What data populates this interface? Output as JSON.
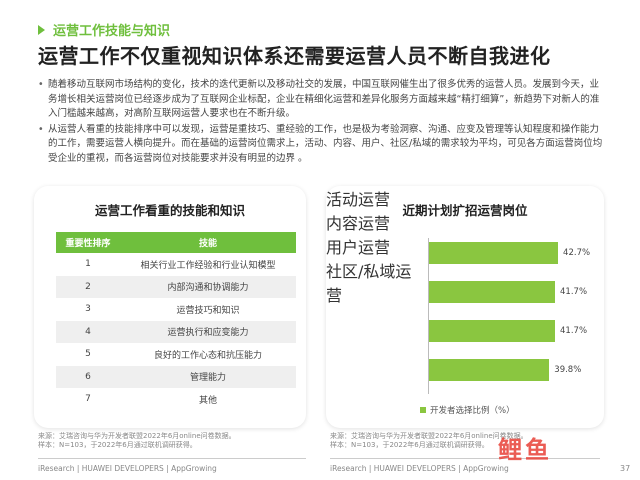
{
  "header": {
    "section": "运营工作技能与知识",
    "title": "运营工作不仅重视知识体系还需要运营人员不断自我进化"
  },
  "bullets": [
    "随着移动互联网市场结构的变化，技术的迭代更新以及移动社交的发展，中国互联网催生出了很多优秀的运营人员。发展到今天，业务增长相关运营岗位已经逐步成为了互联网企业标配，企业在精细化运营和差异化服务方面越来越“精打细算”，新趋势下对新人的准入门槛越来越高，对高阶互联网运营人要求也在不断升级。",
    "从运营人看重的技能排序中可以发现，运营是重技巧、重经验的工作，也是极为考验洞察、沟通、应变及管理等认知程度和操作能力的工作，需要运营人横向提升。而在基础的运营岗位需求上，活动、内容、用户、社区/私域的需求较为平均，可见各方面运营岗位均受企业的重视，而各运营岗位对技能要求并没有明显的边界 。"
  ],
  "left_card": {
    "title": "运营工作看重的技能和知识",
    "headers": [
      "重要性排序",
      "技能"
    ],
    "rows": [
      [
        "1",
        "相关行业工作经验和行业认知模型"
      ],
      [
        "2",
        "内部沟通和协调能力"
      ],
      [
        "3",
        "运营技巧和知识"
      ],
      [
        "4",
        "运营执行和应变能力"
      ],
      [
        "5",
        "良好的工作心态和抗压能力"
      ],
      [
        "6",
        "管理能力"
      ],
      [
        "7",
        "其他"
      ]
    ]
  },
  "right_card": {
    "title": "近期计划扩招运营岗位",
    "legend": "开发者选择比例（%）"
  },
  "chart_data": {
    "type": "bar",
    "orientation": "horizontal",
    "title": "近期计划扩招运营岗位",
    "categories": [
      "活动运营",
      "内容运营",
      "用户运营",
      "社区/私域运营"
    ],
    "series": [
      {
        "name": "开发者选择比例（%）",
        "values": [
          42.7,
          41.7,
          41.7,
          39.8
        ]
      }
    ],
    "value_labels": [
      "42.7%",
      "41.7%",
      "41.7%",
      "39.8%"
    ],
    "xlim": [
      0,
      45
    ],
    "legend_position": "bottom",
    "grid": false,
    "bar_color": "#8ac640"
  },
  "sources": {
    "left_line1": "来源：艾瑞咨询与华为开发者联盟2022年6月online问卷数据。",
    "left_line2": "样本：N=103，于2022年6月通过联机调研获得。",
    "right_line1": "来源：艾瑞咨询与华为开发者联盟2022年6月online问卷数据。",
    "right_line2": "样本：N=103，于2022年6月通过联机调研获得。"
  },
  "footer": {
    "left": "iResearch | HUAWEI DEVELOPERS | AppGrowing",
    "right": "iResearch | HUAWEI DEVELOPERS | AppGrowing",
    "page": "37"
  },
  "watermark": "鲤鱼",
  "colors": {
    "accent": "#6fbf3d",
    "bar": "#8ac640",
    "watermark": "#e8463c"
  }
}
